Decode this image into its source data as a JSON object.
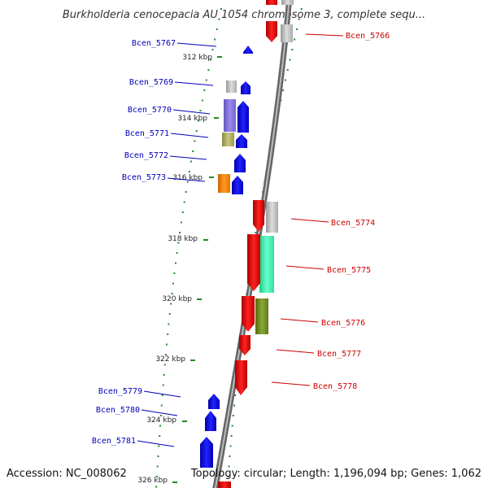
{
  "title": "Burkholderia cenocepacia AU 1054 chromosome 3, complete sequ...",
  "accession": "Accession: NC_008062",
  "summary": "Topology: circular; Length: 1,196,094 bp; Genes: 1,062",
  "colors": {
    "forward_label": "#0000bb",
    "reverse_label": "#cc0000",
    "forward_gene": "#0000ee",
    "reverse_gene": "#ee0000",
    "ticks": "#228b22",
    "backbone": "#888888"
  },
  "kbp_ticks": [
    "312 kbp",
    "314 kbp",
    "316 kbp",
    "318 kbp",
    "320 kbp",
    "322 kbp",
    "324 kbp",
    "326 kbp"
  ],
  "forward_genes": [
    {
      "label": "Bcen_5767"
    },
    {
      "label": "Bcen_5769"
    },
    {
      "label": "Bcen_5770"
    },
    {
      "label": "Bcen_5771"
    },
    {
      "label": "Bcen_5772"
    },
    {
      "label": "Bcen_5773"
    },
    {
      "label": "Bcen_5779"
    },
    {
      "label": "Bcen_5780"
    },
    {
      "label": "Bcen_5781"
    }
  ],
  "reverse_genes": [
    {
      "label": "Bcen_5766"
    },
    {
      "label": "Bcen_5774"
    },
    {
      "label": "Bcen_5775"
    },
    {
      "label": "Bcen_5776"
    },
    {
      "label": "Bcen_5777"
    },
    {
      "label": "Bcen_5778"
    }
  ]
}
